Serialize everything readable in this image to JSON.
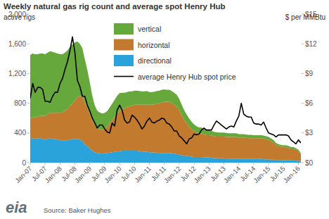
{
  "chart_data": {
    "type": "area",
    "title": "Weekly natural gas rig count and average spot Henry Hub",
    "ylabel": "active rigs",
    "y2label": "$ per MMBtu",
    "source": "Source: Baker Hughes",
    "logo": "eia",
    "stacked": true,
    "grid": false,
    "legend": "upper center",
    "categories": [
      "Jan-07",
      null,
      null,
      null,
      null,
      null,
      "Jul-07",
      null,
      null,
      null,
      null,
      null,
      "Jan-08",
      null,
      null,
      null,
      null,
      null,
      "Jul-08",
      null,
      null,
      null,
      null,
      null,
      "Jan-09",
      null,
      null,
      null,
      null,
      null,
      "Jul-09",
      null,
      null,
      null,
      null,
      null,
      "Jan-10",
      null,
      null,
      null,
      null,
      null,
      "Jul-10",
      null,
      null,
      null,
      null,
      null,
      "Jan-11",
      null,
      null,
      null,
      null,
      null,
      "Jul-11",
      null,
      null,
      null,
      null,
      null,
      "Jan-12",
      null,
      null,
      null,
      null,
      null,
      "Jul-12",
      null,
      null,
      null,
      null,
      null,
      "Jan-13",
      null,
      null,
      null,
      null,
      null,
      "Jul-13",
      null,
      null,
      null,
      null,
      null,
      "Jan-14",
      null,
      null,
      null,
      null,
      null,
      "Jul-14",
      null,
      null,
      null,
      null,
      null,
      "Jan-15",
      null,
      null,
      null,
      null,
      null,
      "Jul-15",
      null,
      null,
      null,
      null,
      null,
      "Jan-16",
      null
    ],
    "ylim": [
      0,
      2000
    ],
    "yticks": [
      0,
      400,
      800,
      {
        "value": 1200,
        "label": "1,200"
      },
      {
        "value": 1600,
        "label": "1,600"
      },
      {
        "value": 2000,
        "label": "2,000"
      }
    ],
    "y2lim": [
      0,
      15
    ],
    "y2ticks": [
      {
        "value": 0,
        "label": "$0"
      },
      {
        "value": 3,
        "label": "$3"
      },
      {
        "value": 6,
        "label": "$6"
      },
      {
        "value": 9,
        "label": "$9"
      },
      {
        "value": 12,
        "label": "$12"
      },
      {
        "value": 15,
        "label": "$15"
      }
    ],
    "series": [
      {
        "name": "vertical",
        "type": "area",
        "color": "#66a83b",
        "values": [
          850,
          860,
          850,
          840,
          840,
          840,
          830,
          830,
          830,
          820,
          810,
          800,
          790,
          780,
          780,
          790,
          800,
          790,
          780,
          750,
          700,
          660,
          580,
          510,
          420,
          330,
          270,
          240,
          230,
          220,
          215,
          215,
          220,
          225,
          230,
          240,
          240,
          220,
          210,
          200,
          200,
          190,
          190,
          190,
          180,
          180,
          180,
          180,
          170,
          170,
          170,
          170,
          170,
          170,
          165,
          160,
          160,
          160,
          160,
          160,
          150,
          140,
          130,
          120,
          110,
          100,
          90,
          85,
          80,
          80,
          75,
          70,
          65,
          65,
          60,
          60,
          55,
          55,
          55,
          55,
          50,
          50,
          50,
          50,
          50,
          50,
          50,
          45,
          45,
          45,
          40,
          40,
          40,
          40,
          40,
          40,
          40,
          35,
          35,
          30,
          30,
          25,
          25,
          25,
          25,
          20,
          20,
          20,
          20,
          15
        ]
      },
      {
        "name": "horizontal",
        "type": "area",
        "color": "#c27a2f",
        "values": [
          270,
          280,
          290,
          290,
          300,
          310,
          320,
          330,
          340,
          350,
          350,
          360,
          370,
          380,
          400,
          420,
          450,
          480,
          520,
          560,
          590,
          590,
          560,
          520,
          470,
          410,
          360,
          330,
          320,
          320,
          330,
          350,
          390,
          430,
          470,
          510,
          540,
          560,
          570,
          590,
          600,
          610,
          620,
          620,
          630,
          630,
          630,
          640,
          640,
          640,
          650,
          660,
          670,
          680,
          690,
          690,
          690,
          680,
          660,
          640,
          600,
          540,
          480,
          440,
          400,
          370,
          350,
          330,
          320,
          320,
          310,
          300,
          300,
          300,
          290,
          290,
          290,
          290,
          290,
          290,
          290,
          290,
          290,
          290,
          280,
          280,
          280,
          280,
          280,
          280,
          280,
          280,
          280,
          280,
          280,
          270,
          260,
          250,
          230,
          200,
          185,
          180,
          180,
          180,
          170,
          160,
          160,
          150,
          130,
          90
        ]
      },
      {
        "name": "directional",
        "type": "area",
        "color": "#2aa3da",
        "values": [
          330,
          330,
          320,
          330,
          330,
          320,
          310,
          320,
          330,
          320,
          320,
          310,
          300,
          300,
          300,
          300,
          310,
          320,
          320,
          320,
          310,
          290,
          250,
          220,
          190,
          160,
          140,
          130,
          125,
          120,
          125,
          130,
          135,
          140,
          145,
          150,
          155,
          160,
          160,
          160,
          160,
          160,
          160,
          160,
          155,
          150,
          150,
          145,
          140,
          140,
          135,
          135,
          130,
          130,
          130,
          130,
          130,
          125,
          120,
          115,
          110,
          100,
          95,
          90,
          85,
          80,
          75,
          75,
          75,
          75,
          70,
          70,
          70,
          65,
          65,
          60,
          60,
          60,
          60,
          55,
          55,
          55,
          55,
          55,
          55,
          55,
          55,
          55,
          50,
          50,
          50,
          50,
          50,
          50,
          45,
          45,
          45,
          40,
          40,
          35,
          35,
          35,
          30,
          30,
          30,
          30,
          30,
          25,
          25,
          20
        ]
      },
      {
        "name": "average Henry Hub spot price",
        "type": "line",
        "axis": "y2",
        "color": "#000000",
        "line_style": "solid",
        "values": [
          6.5,
          8.0,
          7.1,
          7.6,
          7.6,
          7.4,
          6.2,
          6.2,
          6.1,
          6.7,
          7.1,
          7.1,
          8.0,
          8.5,
          9.4,
          10.2,
          11.3,
          12.7,
          11.1,
          8.3,
          7.7,
          6.7,
          6.7,
          5.8,
          5.2,
          4.5,
          4.0,
          3.5,
          3.8,
          3.8,
          3.4,
          3.1,
          3.0,
          4.0,
          3.7,
          5.3,
          5.8,
          5.3,
          4.3,
          4.0,
          4.1,
          4.8,
          4.6,
          4.3,
          3.9,
          3.4,
          3.7,
          4.2,
          4.5,
          4.1,
          4.0,
          4.2,
          4.3,
          4.5,
          4.4,
          4.0,
          3.9,
          3.6,
          3.2,
          3.2,
          2.7,
          2.5,
          2.2,
          1.9,
          2.4,
          2.5,
          2.9,
          2.8,
          2.9,
          3.3,
          3.5,
          3.3,
          3.3,
          3.3,
          3.8,
          4.2,
          4.0,
          3.8,
          3.6,
          3.4,
          3.6,
          3.7,
          3.6,
          4.2,
          4.7,
          6.0,
          4.9,
          4.7,
          4.6,
          4.6,
          4.0,
          3.9,
          3.9,
          3.8,
          4.1,
          3.5,
          3.0,
          2.9,
          2.8,
          2.6,
          2.8,
          2.8,
          2.8,
          2.8,
          2.7,
          2.3,
          2.1,
          1.9,
          2.3,
          2.0
        ]
      }
    ]
  }
}
